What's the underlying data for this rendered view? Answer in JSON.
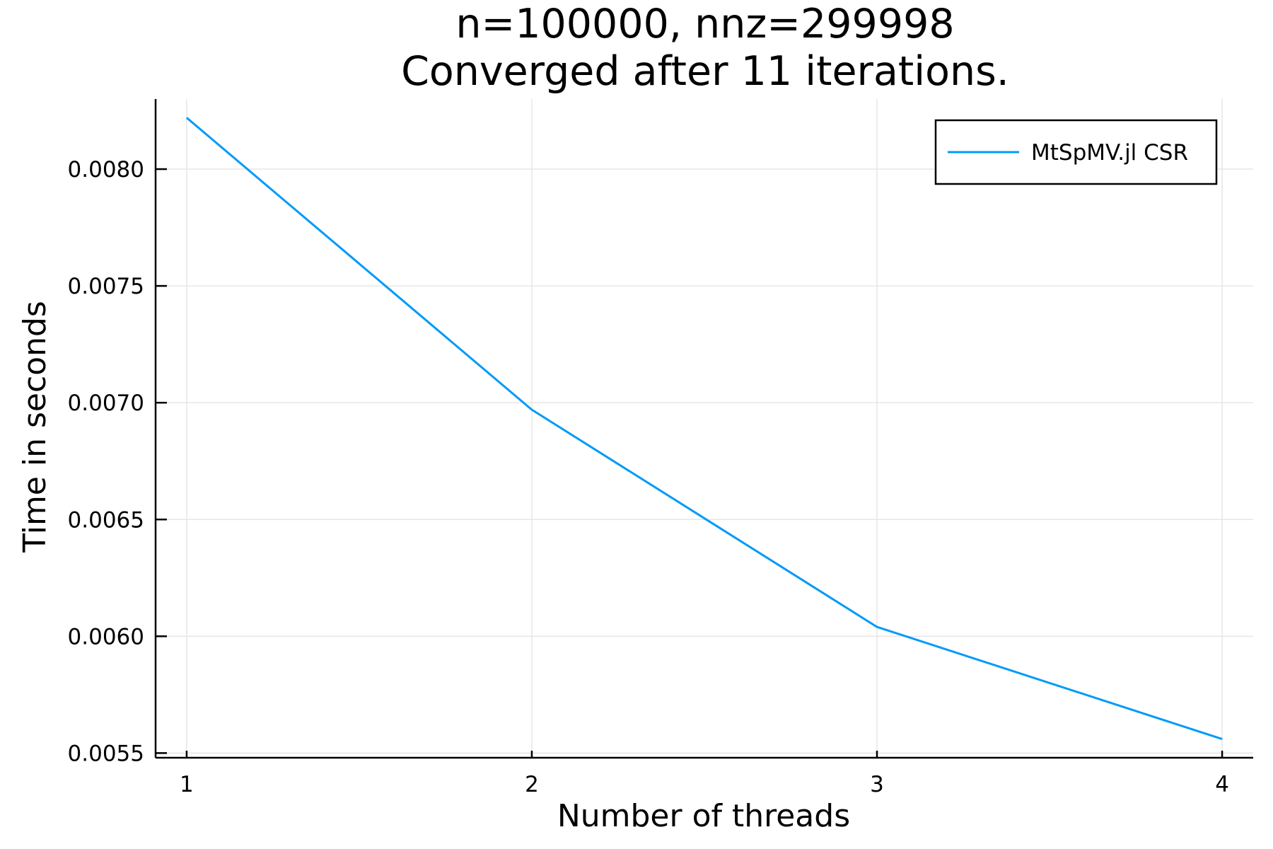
{
  "chart_data": {
    "type": "line",
    "title_line1": "n=100000, nnz=299998",
    "title_line2": "Converged after 11 iterations.",
    "xlabel": "Number of threads",
    "ylabel": "Time in seconds",
    "x": [
      1,
      2,
      3,
      4
    ],
    "x_ticks": [
      "1",
      "2",
      "3",
      "4"
    ],
    "y_ticks": [
      "0.0055",
      "0.0060",
      "0.0065",
      "0.0070",
      "0.0075",
      "0.0080"
    ],
    "y_tick_values": [
      0.0055,
      0.006,
      0.0065,
      0.007,
      0.0075,
      0.008
    ],
    "xlim": [
      0.91,
      4.09
    ],
    "ylim": [
      0.00548,
      0.0083
    ],
    "grid": true,
    "legend_position": "top-right",
    "series": [
      {
        "name": "MtSpMV.jl CSR",
        "color": "#009af9",
        "values": [
          0.00822,
          0.00697,
          0.00604,
          0.00556
        ]
      }
    ]
  }
}
